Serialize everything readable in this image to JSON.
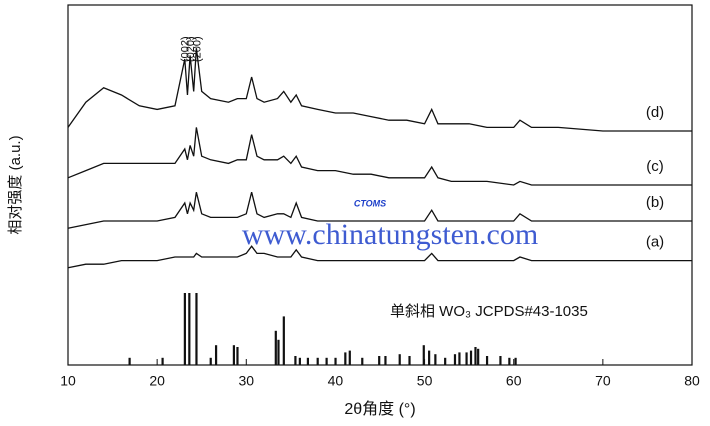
{
  "chart_data": {
    "type": "line",
    "x_label": "2θ角度  (°)",
    "y_label": "相对强度 (a.u.)",
    "xlim": [
      10,
      80
    ],
    "ylim": [
      0,
      100
    ],
    "xticks": [
      10,
      20,
      30,
      40,
      50,
      60,
      70,
      80
    ],
    "x": [
      10,
      12,
      14,
      16,
      18,
      20,
      22,
      23.1,
      23.4,
      23.7,
      24.1,
      24.4,
      25,
      26,
      28,
      29,
      30,
      30.6,
      31.2,
      32,
      33.5,
      34.2,
      35,
      35.6,
      36.2,
      38,
      40,
      42,
      44,
      46,
      48,
      50,
      50.8,
      51.5,
      53,
      55,
      57,
      60,
      60.7,
      62,
      65,
      70,
      75,
      80
    ],
    "series": [
      {
        "name": "(d)",
        "color": "#111111",
        "values": [
          66,
          73,
          77,
          75,
          72,
          71,
          72,
          85,
          75,
          86,
          76,
          88,
          76,
          74,
          73,
          74,
          74,
          80,
          74,
          73,
          74,
          76,
          73,
          75,
          72,
          71,
          70,
          70,
          69,
          68,
          68,
          67,
          71,
          67,
          67,
          67,
          66,
          66,
          68,
          66,
          66,
          65,
          65,
          65
        ]
      },
      {
        "name": "(c)",
        "color": "#111111",
        "values": [
          52,
          54,
          56,
          56,
          56,
          56,
          56,
          60,
          57,
          61,
          58,
          66,
          58,
          57,
          56,
          57,
          57,
          64,
          58,
          57,
          57,
          58,
          56,
          58,
          55,
          54,
          54,
          53,
          53,
          52,
          52,
          52,
          55,
          52,
          51,
          51,
          51,
          50,
          51,
          50,
          50,
          50,
          50,
          50
        ]
      },
      {
        "name": "(b)",
        "color": "#111111",
        "values": [
          38,
          39,
          40,
          40,
          40,
          40,
          41,
          45,
          42,
          45,
          43,
          48,
          42,
          41,
          41,
          41,
          42,
          48,
          42,
          41,
          42,
          42,
          41,
          45,
          41,
          40,
          40,
          40,
          40,
          40,
          40,
          40,
          43,
          40,
          40,
          40,
          40,
          40,
          42,
          40,
          40,
          40,
          40,
          40
        ]
      },
      {
        "name": "(a)",
        "color": "#111111",
        "values": [
          27,
          28,
          28,
          29,
          29,
          29,
          30,
          30,
          30,
          30,
          30,
          31,
          30,
          30,
          30,
          30,
          31,
          33,
          31,
          31,
          30,
          30,
          30,
          32,
          30,
          29,
          29,
          29,
          29,
          29,
          29,
          29,
          31,
          29,
          29,
          29,
          29,
          29,
          30,
          29,
          29,
          29,
          29,
          29
        ]
      }
    ],
    "reference": {
      "name": "单斜相 WO₃  JCPDS#43-1035",
      "color": "#111111",
      "x": [
        16.9,
        20.6,
        23.1,
        23.6,
        24.4,
        26.0,
        26.6,
        28.6,
        29.0,
        33.3,
        33.6,
        34.2,
        35.5,
        36.0,
        36.9,
        38.0,
        39.0,
        40.0,
        41.1,
        41.6,
        43.0,
        44.9,
        45.6,
        47.2,
        48.3,
        49.9,
        50.5,
        51.2,
        52.3,
        53.4,
        53.9,
        54.7,
        55.2,
        55.7,
        56.0,
        57.0,
        58.5,
        59.5,
        60.2
      ],
      "values": [
        2,
        2,
        20,
        20,
        20,
        2,
        5.5,
        5.5,
        5,
        9.5,
        7,
        13.5,
        2.5,
        2,
        2,
        2,
        2,
        2,
        3.5,
        4,
        2,
        2.5,
        2.5,
        3,
        2.5,
        5.5,
        4,
        3,
        2,
        3,
        3.5,
        3.5,
        4,
        5,
        4.5,
        2.5,
        2.5,
        2,
        2
      ]
    },
    "annotations": [
      {
        "text": "(002)",
        "x": 23.1
      },
      {
        "text": "(020)",
        "x": 23.7
      },
      {
        "text": "(200)",
        "x": 24.4
      }
    ],
    "watermark": "www.chinatungsten.com",
    "logo_text": "CTOMS"
  }
}
